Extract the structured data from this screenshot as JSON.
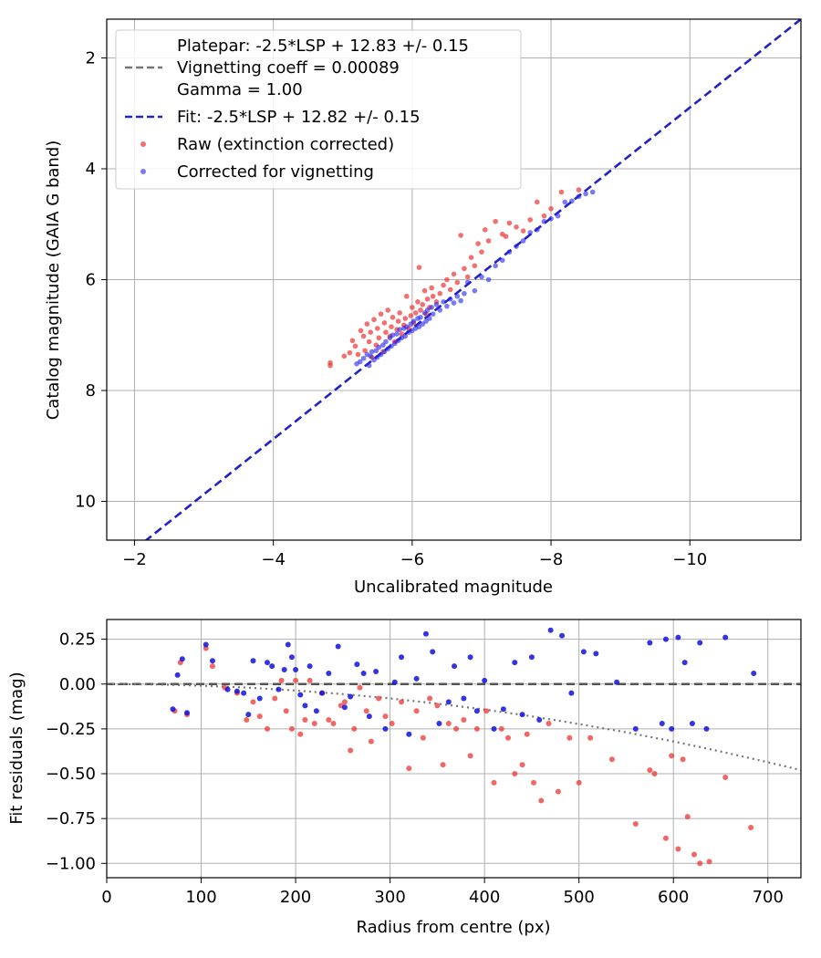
{
  "chart_data": [
    {
      "type": "scatter",
      "xlabel": "Uncalibrated magnitude",
      "ylabel": "Catalog magnitude (GAIA G band)",
      "xlim": [
        -1.6,
        -11.6
      ],
      "ylim": [
        10.7,
        1.3
      ],
      "x_inverted": true,
      "y_inverted": true,
      "xticks": [
        -2,
        -4,
        -6,
        -8,
        -10
      ],
      "yticks": [
        2,
        4,
        6,
        8,
        10
      ],
      "grid": true,
      "legend_placement": "upper-left",
      "lines": [
        {
          "name": "Platepar: -2.5*LSP + 12.83 +/- 0.15\nVignetting coeff = 0.00089\nGamma = 1.00",
          "style": "dashed",
          "color": "#777777",
          "x": [
            -2.15,
            -11.6
          ],
          "y": [
            10.72,
            1.3
          ]
        },
        {
          "name": "Fit: -2.5*LSP + 12.82 +/- 0.15",
          "style": "dashed",
          "color": "#2222cc",
          "x": [
            -2.15,
            -11.6
          ],
          "y": [
            10.72,
            1.3
          ]
        }
      ],
      "series": [
        {
          "name": "Raw (extinction corrected)",
          "color": "#ee3333",
          "x": [
            -4.82,
            -4.82,
            -5.02,
            -5.1,
            -5.14,
            -5.18,
            -5.22,
            -5.26,
            -5.3,
            -5.32,
            -5.35,
            -5.38,
            -5.4,
            -5.42,
            -5.45,
            -5.48,
            -5.5,
            -5.52,
            -5.55,
            -5.58,
            -5.6,
            -5.62,
            -5.65,
            -5.68,
            -5.7,
            -5.72,
            -5.75,
            -5.78,
            -5.8,
            -5.82,
            -5.85,
            -5.88,
            -5.9,
            -5.92,
            -5.95,
            -5.98,
            -6.0,
            -6.02,
            -6.05,
            -6.08,
            -6.1,
            -6.12,
            -6.15,
            -6.18,
            -6.2,
            -6.22,
            -6.25,
            -6.28,
            -6.3,
            -6.35,
            -6.4,
            -6.45,
            -6.5,
            -6.55,
            -6.6,
            -6.65,
            -6.7,
            -6.75,
            -6.8,
            -6.85,
            -6.9,
            -6.95,
            -7.0,
            -7.05,
            -7.1,
            -7.2,
            -7.3,
            -7.35,
            -7.4,
            -7.5,
            -7.6,
            -7.7,
            -7.8,
            -7.9,
            -8.0,
            -8.15,
            -8.4
          ],
          "y": [
            7.55,
            7.5,
            7.38,
            7.32,
            7.1,
            7.2,
            7.35,
            6.92,
            7.02,
            7.28,
            6.8,
            7.12,
            6.95,
            7.4,
            6.72,
            7.18,
            6.88,
            7.05,
            6.62,
            7.3,
            6.78,
            6.95,
            6.55,
            7.02,
            6.85,
            6.68,
            7.12,
            6.9,
            6.75,
            6.6,
            6.98,
            6.82,
            6.7,
            6.3,
            6.88,
            6.65,
            6.5,
            6.78,
            6.6,
            6.4,
            5.78,
            6.55,
            6.45,
            6.2,
            6.62,
            6.35,
            6.5,
            6.15,
            6.3,
            6.4,
            6.25,
            6.1,
            6.0,
            6.18,
            5.9,
            6.05,
            5.2,
            5.8,
            5.95,
            5.6,
            5.75,
            5.35,
            5.5,
            5.1,
            5.3,
            4.95,
            5.18,
            5.22,
            4.98,
            5.05,
            5.12,
            4.92,
            4.6,
            4.85,
            4.72,
            4.42,
            4.38
          ]
        },
        {
          "name": "Corrected for vignetting",
          "color": "#2222ee",
          "x": [
            -5.2,
            -5.25,
            -5.3,
            -5.35,
            -5.38,
            -5.4,
            -5.42,
            -5.45,
            -5.48,
            -5.5,
            -5.52,
            -5.55,
            -5.58,
            -5.6,
            -5.62,
            -5.65,
            -5.68,
            -5.7,
            -5.72,
            -5.75,
            -5.78,
            -5.8,
            -5.82,
            -5.85,
            -5.88,
            -5.9,
            -5.92,
            -5.95,
            -5.98,
            -6.0,
            -6.02,
            -6.05,
            -6.08,
            -6.1,
            -6.12,
            -6.15,
            -6.18,
            -6.2,
            -6.22,
            -6.25,
            -6.28,
            -6.3,
            -6.35,
            -6.4,
            -6.45,
            -6.5,
            -6.55,
            -6.6,
            -6.65,
            -6.7,
            -6.75,
            -6.8,
            -6.9,
            -7.0,
            -7.1,
            -7.2,
            -7.3,
            -7.4,
            -7.5,
            -7.6,
            -7.7,
            -7.8,
            -7.9,
            -8.0,
            -8.1,
            -8.2,
            -8.3,
            -8.4,
            -8.5,
            -8.6
          ],
          "y": [
            7.52,
            7.48,
            7.42,
            7.35,
            7.55,
            7.38,
            7.3,
            7.45,
            7.28,
            7.4,
            7.22,
            7.35,
            7.18,
            7.3,
            7.12,
            7.25,
            7.05,
            7.2,
            7.0,
            7.15,
            6.98,
            7.1,
            6.9,
            7.05,
            6.88,
            7.02,
            6.85,
            6.95,
            6.8,
            6.92,
            6.75,
            6.88,
            6.7,
            6.85,
            6.68,
            6.8,
            6.6,
            6.75,
            6.55,
            6.7,
            6.5,
            6.62,
            6.45,
            6.55,
            6.4,
            6.48,
            6.35,
            6.42,
            6.3,
            6.38,
            6.25,
            6.05,
            6.2,
            5.95,
            6.0,
            5.75,
            5.65,
            5.5,
            5.4,
            5.3,
            5.15,
            5.1,
            4.95,
            4.9,
            4.85,
            4.6,
            4.58,
            4.5,
            4.45,
            4.42
          ]
        }
      ]
    },
    {
      "type": "scatter",
      "xlabel": "Radius from centre (px)",
      "ylabel": "Fit residuals (mag)",
      "xlim": [
        0,
        735
      ],
      "ylim": [
        -1.08,
        0.36
      ],
      "xticks": [
        0,
        100,
        200,
        300,
        400,
        500,
        600,
        700
      ],
      "yticks": [
        0.25,
        0.0,
        -0.25,
        -0.5,
        -0.75,
        -1.0
      ],
      "yticklabels": [
        "0.25",
        "0.00",
        "−0.25",
        "−0.50",
        "−0.75",
        "−1.00"
      ],
      "grid": true,
      "lines": [
        {
          "style": "dashed",
          "color": "#555555",
          "x": [
            0,
            735
          ],
          "y": [
            0,
            0
          ]
        },
        {
          "style": "dotted",
          "color": "#777777",
          "x": [
            0,
            50,
            100,
            150,
            200,
            250,
            300,
            350,
            400,
            450,
            500,
            550,
            600,
            650,
            700,
            735
          ],
          "y": [
            0,
            -0.002,
            -0.009,
            -0.02,
            -0.036,
            -0.056,
            -0.08,
            -0.109,
            -0.142,
            -0.18,
            -0.223,
            -0.269,
            -0.32,
            -0.376,
            -0.436,
            -0.48
          ]
        }
      ],
      "series": [
        {
          "name": "Raw (extinction corrected)",
          "color": "#ee3333",
          "x": [
            72,
            78,
            85,
            105,
            112,
            125,
            138,
            148,
            155,
            162,
            170,
            178,
            185,
            190,
            196,
            200,
            205,
            210,
            215,
            220,
            228,
            235,
            240,
            248,
            252,
            258,
            262,
            268,
            275,
            280,
            288,
            295,
            302,
            312,
            320,
            328,
            335,
            342,
            350,
            356,
            362,
            370,
            378,
            385,
            392,
            402,
            410,
            418,
            425,
            432,
            440,
            445,
            452,
            460,
            468,
            478,
            490,
            500,
            512,
            535,
            560,
            575,
            580,
            592,
            598,
            605,
            610,
            615,
            622,
            628,
            638,
            655,
            682
          ],
          "y": [
            -0.15,
            0.12,
            -0.17,
            0.2,
            0.1,
            -0.02,
            -0.05,
            -0.2,
            -0.1,
            -0.18,
            -0.25,
            -0.08,
            0.02,
            -0.15,
            -0.25,
            0.02,
            -0.28,
            -0.2,
            0.02,
            -0.22,
            -0.05,
            -0.2,
            -0.22,
            -0.12,
            -0.1,
            -0.37,
            -0.25,
            -0.02,
            -0.15,
            -0.32,
            -0.08,
            -0.18,
            -0.22,
            -0.1,
            -0.47,
            -0.15,
            -0.3,
            -0.08,
            -0.12,
            -0.45,
            -0.22,
            -0.25,
            -0.2,
            -0.4,
            -0.25,
            -0.15,
            -0.55,
            -0.25,
            -0.3,
            -0.5,
            -0.45,
            -0.28,
            -0.55,
            -0.65,
            -0.22,
            -0.6,
            -0.3,
            -0.55,
            -0.3,
            -0.42,
            -0.78,
            -0.48,
            -0.5,
            -0.86,
            -0.4,
            -0.92,
            -0.42,
            -0.74,
            -0.95,
            -1.0,
            -0.99,
            -0.52,
            -0.8
          ]
        },
        {
          "name": "Corrected for vignetting",
          "color": "#1111dd",
          "x": [
            70,
            75,
            80,
            85,
            105,
            112,
            128,
            138,
            145,
            150,
            155,
            162,
            170,
            175,
            182,
            188,
            192,
            196,
            200,
            205,
            210,
            215,
            222,
            228,
            235,
            245,
            252,
            258,
            265,
            272,
            278,
            285,
            295,
            305,
            312,
            320,
            328,
            338,
            345,
            352,
            362,
            368,
            378,
            385,
            392,
            400,
            410,
            420,
            432,
            440,
            450,
            458,
            470,
            482,
            492,
            505,
            518,
            540,
            560,
            575,
            588,
            592,
            598,
            605,
            612,
            620,
            628,
            635,
            655,
            685
          ],
          "y": [
            -0.14,
            0.05,
            0.14,
            -0.16,
            0.22,
            0.13,
            -0.03,
            -0.04,
            -0.05,
            -0.17,
            0.13,
            -0.08,
            0.12,
            0.1,
            -0.03,
            0.08,
            0.22,
            0.15,
            0.08,
            -0.06,
            -0.12,
            0.1,
            -0.15,
            -0.05,
            0.06,
            0.21,
            -0.13,
            -0.07,
            0.11,
            0.06,
            -0.18,
            0.07,
            -0.25,
            0.01,
            0.15,
            -0.28,
            0.03,
            0.28,
            0.18,
            -0.22,
            -0.1,
            0.1,
            -0.08,
            0.15,
            -0.15,
            0.02,
            -0.25,
            -0.14,
            0.12,
            -0.17,
            0.15,
            -0.2,
            0.3,
            0.27,
            -0.05,
            0.18,
            0.17,
            0.01,
            -0.25,
            0.23,
            -0.22,
            0.25,
            -0.25,
            0.26,
            0.12,
            -0.22,
            0.23,
            -0.25,
            0.26,
            0.06
          ]
        }
      ]
    }
  ]
}
